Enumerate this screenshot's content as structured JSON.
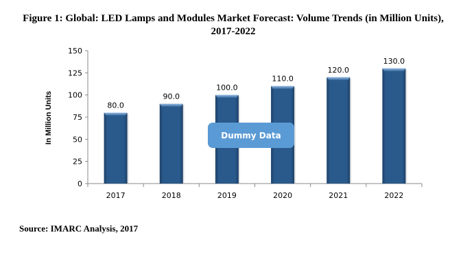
{
  "title": "Figure 1: Global: LED Lamps and Modules Market Forecast: Volume Trends (in Million Units), 2017-2022",
  "source": "Source: IMARC Analysis, 2017",
  "watermark": "Dummy Data",
  "colors": {
    "bar": "#2a5a8c",
    "bar_dark": "#1d4168",
    "bar_top": "#6d9bd0",
    "watermark_bg": "#5b9bd5"
  },
  "chart_data": {
    "type": "bar",
    "title": "Figure 1: Global: LED Lamps and Modules Market Forecast: Volume Trends (in Million Units), 2017-2022",
    "xlabel": "",
    "ylabel": "In Million Units",
    "categories": [
      "2017",
      "2018",
      "2019",
      "2020",
      "2021",
      "2022"
    ],
    "values": [
      80.0,
      90.0,
      100.0,
      110.0,
      120.0,
      130.0
    ],
    "data_labels": [
      "80.0",
      "90.0",
      "100.0",
      "110.0",
      "120.0",
      "130.0"
    ],
    "ylim": [
      0,
      150
    ],
    "yticks": [
      0,
      25,
      50,
      75,
      100,
      125,
      150
    ],
    "grid": false,
    "legend": "none"
  }
}
